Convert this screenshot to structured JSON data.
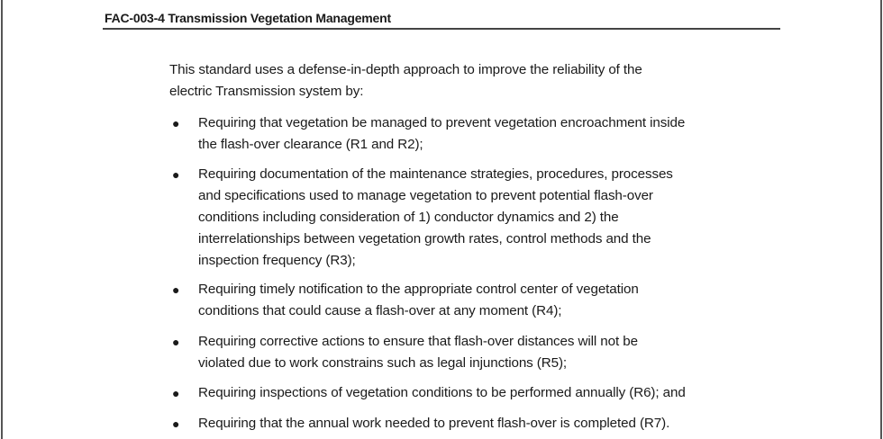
{
  "header": {
    "title": "FAC-003-4 Transmission Vegetation Management"
  },
  "intro": {
    "lines": [
      "This standard uses a defense-in-depth approach to improve the reliability of the",
      "electric Transmission system by:"
    ]
  },
  "bullet_glyph": "●",
  "bullets": [
    {
      "lines": [
        "Requiring that vegetation be managed to prevent vegetation encroachment inside",
        "the flash-over clearance (R1 and R2);"
      ]
    },
    {
      "lines": [
        "Requiring documentation of the maintenance strategies, procedures, processes",
        "and specifications used to manage vegetation to prevent potential flash-over",
        "conditions including consideration of 1) conductor dynamics and 2) the",
        "interrelationships between vegetation growth rates, control methods and the",
        "inspection frequency (R3);"
      ]
    },
    {
      "lines": [
        "Requiring timely notification to the appropriate control center of vegetation",
        "conditions that could cause a flash-over at any moment (R4);"
      ]
    },
    {
      "lines": [
        "Requiring corrective actions to ensure that flash-over distances will not be",
        "violated due to work constrains such as legal injunctions (R5);"
      ]
    },
    {
      "lines": [
        "Requiring inspections of vegetation conditions to be performed annually (R6); and"
      ]
    },
    {
      "lines": [
        "Requiring that the annual work needed to prevent flash-over is completed (R7)."
      ]
    }
  ]
}
